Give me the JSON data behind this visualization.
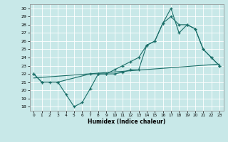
{
  "bg_color": "#c8e8e8",
  "line_color": "#1a6e68",
  "xlabel": "Humidex (Indice chaleur)",
  "xlim": [
    -0.5,
    23.5
  ],
  "ylim": [
    17.5,
    30.5
  ],
  "xticks": [
    0,
    1,
    2,
    3,
    4,
    5,
    6,
    7,
    8,
    9,
    10,
    11,
    12,
    13,
    14,
    15,
    16,
    17,
    18,
    19,
    20,
    21,
    22,
    23
  ],
  "yticks": [
    18,
    19,
    20,
    21,
    22,
    23,
    24,
    25,
    26,
    27,
    28,
    29,
    30
  ],
  "line1_x": [
    0,
    1,
    2,
    3,
    4,
    5,
    6,
    7,
    8,
    9,
    10,
    11,
    12,
    13,
    14,
    15,
    16,
    17,
    18,
    19,
    20,
    21,
    22,
    23
  ],
  "line1_y": [
    22,
    21,
    21,
    21,
    19.5,
    18.0,
    18.5,
    20.2,
    22,
    22,
    22,
    22.2,
    22.5,
    22.5,
    25.5,
    26,
    28.2,
    30,
    27,
    28,
    27.5,
    25,
    24,
    23
  ],
  "line2_x": [
    0,
    1,
    3,
    7,
    8,
    9,
    10,
    11,
    12,
    13,
    14,
    15,
    16,
    17,
    18,
    19,
    20,
    21,
    22,
    23
  ],
  "line2_y": [
    22,
    21,
    21,
    22,
    22,
    22,
    22.5,
    23,
    23.5,
    24,
    25.5,
    26,
    28.2,
    29,
    28,
    28,
    27.5,
    25,
    24,
    23
  ],
  "line3_x": [
    0,
    23
  ],
  "line3_y": [
    21.5,
    23.2
  ]
}
